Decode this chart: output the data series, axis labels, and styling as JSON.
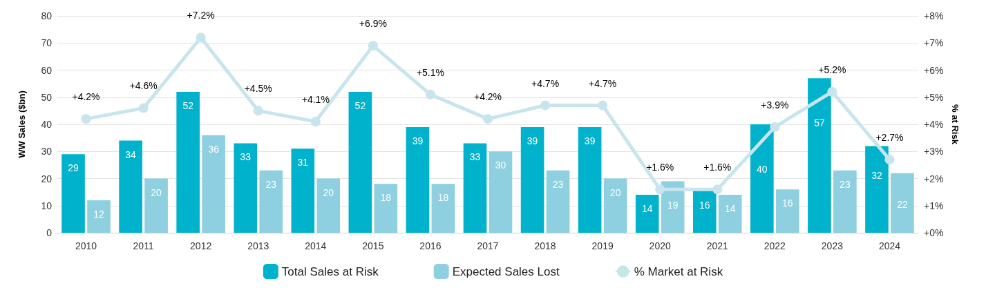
{
  "chart_data": {
    "type": "bar",
    "ylabel": "WW Sales ($bn)",
    "y2label": "% at Risk",
    "categories": [
      "2010",
      "2011",
      "2012",
      "2013",
      "2014",
      "2015",
      "2016",
      "2017",
      "2018",
      "2019",
      "2020",
      "2021",
      "2022",
      "2023",
      "2024"
    ],
    "series": [
      {
        "name": "Total Sales at Risk",
        "color": "#00b2cc",
        "values": [
          29,
          34,
          52,
          33,
          31,
          52,
          39,
          33,
          39,
          39,
          14,
          16,
          40,
          57,
          32
        ]
      },
      {
        "name": "Expected Sales Lost",
        "color": "#8ecfe0",
        "values": [
          12,
          20,
          36,
          23,
          20,
          18,
          18,
          30,
          23,
          20,
          19,
          14,
          16,
          23,
          22
        ]
      },
      {
        "name": "% Market at Risk",
        "type": "line",
        "axis": "y2",
        "color": "#c8e5ee",
        "marker": "circle",
        "values": [
          4.2,
          4.6,
          7.2,
          4.5,
          4.1,
          6.9,
          5.1,
          4.2,
          4.7,
          4.7,
          1.6,
          1.6,
          3.9,
          5.2,
          2.7
        ],
        "value_labels": [
          "+4.2%",
          "+4.6%",
          "+7.2%",
          "+4.5%",
          "+4.1%",
          "+6.9%",
          "+5.1%",
          "+4.2%",
          "+4.7%",
          "+4.7%",
          "+1.6%",
          "+1.6%",
          "+3.9%",
          "+5.2%",
          "+2.7%"
        ]
      }
    ],
    "ylim": [
      0,
      80
    ],
    "yticks": [
      0,
      10,
      20,
      30,
      40,
      50,
      60,
      70,
      80
    ],
    "y2lim": [
      0,
      8
    ],
    "y2ticks": [
      {
        "value": 0,
        "label": "+0%"
      },
      {
        "value": 1,
        "label": "+1%"
      },
      {
        "value": 2,
        "label": "+2%"
      },
      {
        "value": 3,
        "label": "+3%"
      },
      {
        "value": 4,
        "label": "+4%"
      },
      {
        "value": 5,
        "label": "+5%"
      },
      {
        "value": 6,
        "label": "+6%"
      },
      {
        "value": 7,
        "label": "+7%"
      },
      {
        "value": 8,
        "label": "+8%"
      }
    ],
    "data_labels": true,
    "grid": "y",
    "legend": "bottom"
  }
}
